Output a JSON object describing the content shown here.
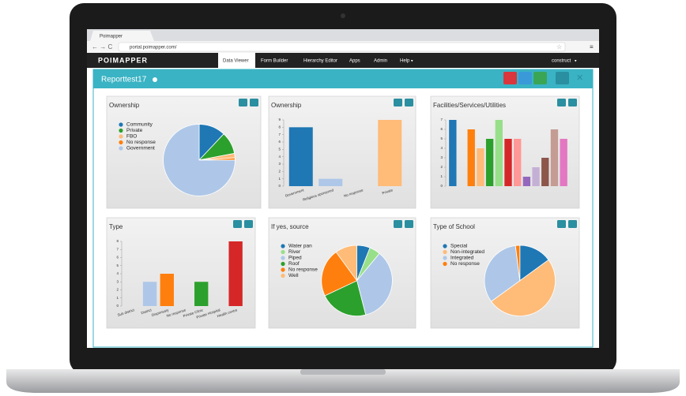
{
  "browser": {
    "tab": "Poimapper",
    "url": "portal.poimapper.com/"
  },
  "app": {
    "logo": "POIMAPPER",
    "nav": [
      "Data Viewer",
      "Form Builder",
      "Hierarchy Editor",
      "Apps",
      "Admin",
      "Help"
    ],
    "user": "construct"
  },
  "report": {
    "title": "Reporttest17"
  },
  "panels": [
    {
      "title": "Ownership",
      "chart": {
        "type": "pie",
        "categories": [
          "Community",
          "Private",
          "FBO",
          "No response",
          "Government"
        ],
        "values": [
          12,
          10,
          2,
          1,
          75
        ],
        "colors": [
          "#1f77b4",
          "#2ca02c",
          "#ffbb78",
          "#ff7f0e",
          "#aec7e8"
        ]
      }
    },
    {
      "title": "Ownership",
      "chart": {
        "type": "bar",
        "categories": [
          "Government",
          "Religious sponsored",
          "No response",
          "Private"
        ],
        "values": [
          8,
          1,
          0,
          9
        ],
        "colors": [
          "#1f77b4",
          "#aec7e8",
          "#ff7f0e",
          "#ffbb78"
        ],
        "ylim": [
          0,
          9
        ],
        "yticks": [
          0,
          1,
          2,
          3,
          4,
          5,
          6,
          7,
          8,
          9
        ]
      }
    },
    {
      "title": "Facilities/Services/Utilities",
      "chart": {
        "type": "bar",
        "categories": [
          null,
          null,
          null,
          null,
          null,
          null,
          null,
          null,
          null,
          null,
          null,
          null,
          null
        ],
        "values": [
          7,
          0,
          6,
          4,
          5,
          7,
          5,
          5,
          1,
          2,
          3,
          6,
          5
        ],
        "colors": [
          "#1f77b4",
          "#aec7e8",
          "#ff7f0e",
          "#ffbb78",
          "#2ca02c",
          "#98df8a",
          "#d62728",
          "#ff9896",
          "#9467bd",
          "#c5b0d5",
          "#8c564b",
          "#c49c94",
          "#e377c2"
        ],
        "ylim": [
          0,
          7
        ],
        "yticks": [
          0,
          1,
          2,
          3,
          4,
          5,
          6,
          7
        ]
      }
    },
    {
      "title": "Type",
      "chart": {
        "type": "bar",
        "categories": [
          "Sub district",
          "District",
          "Dispensary",
          "No response",
          "Private Clinic",
          "Private Hospital",
          "Health centre"
        ],
        "values": [
          0,
          3,
          4,
          0,
          3,
          0,
          8
        ],
        "colors": [
          "#1f77b4",
          "#aec7e8",
          "#ff7f0e",
          "#ffbb78",
          "#2ca02c",
          "#98df8a",
          "#d62728"
        ],
        "ylim": [
          0,
          8
        ],
        "yticks": [
          0,
          1,
          2,
          3,
          4,
          5,
          6,
          7,
          8
        ]
      }
    },
    {
      "title": "If yes, source",
      "chart": {
        "type": "pie",
        "categories": [
          "Water pan",
          "River",
          "Piped",
          "Roof",
          "No response",
          "Well"
        ],
        "values": [
          6,
          5,
          35,
          22,
          22,
          10
        ],
        "colors": [
          "#1f77b4",
          "#98df8a",
          "#aec7e8",
          "#2ca02c",
          "#ff7f0e",
          "#ffbb78"
        ]
      }
    },
    {
      "title": "Type of School",
      "chart": {
        "type": "pie",
        "categories": [
          "Special",
          "Non-integrated",
          "Integrated",
          "No response"
        ],
        "values": [
          15,
          50,
          33,
          2
        ],
        "colors": [
          "#1f77b4",
          "#ffbb78",
          "#aec7e8",
          "#ff7f0e"
        ]
      }
    }
  ]
}
